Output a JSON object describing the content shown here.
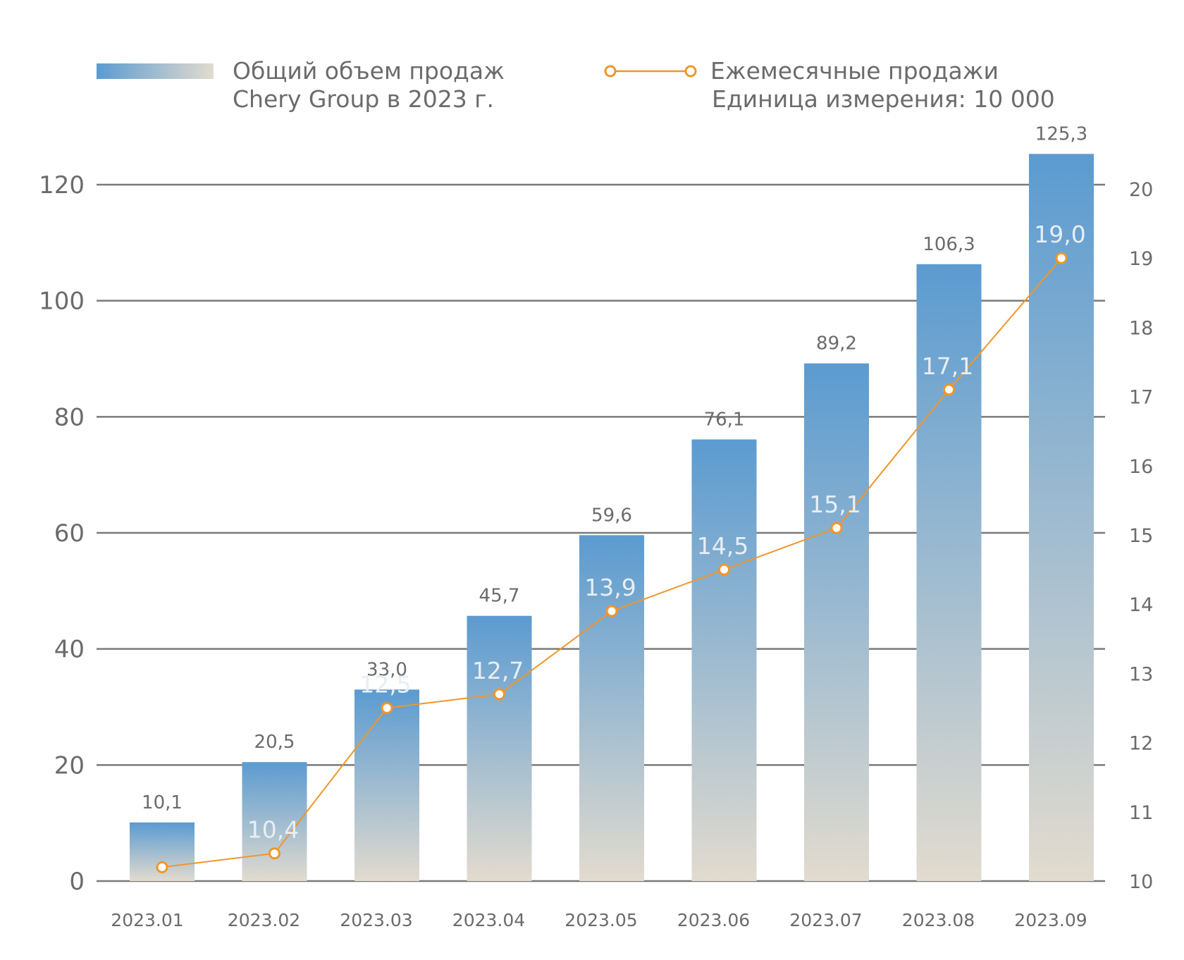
{
  "legend": {
    "bar_label_line1": "Общий объем продаж",
    "bar_label_line2": "Chery Group в 2023 г.",
    "line_label": "Ежемесячные продажи",
    "unit_label": "Единица измерения: 10 000"
  },
  "colors": {
    "bar_top": "#5b9bd0",
    "bar_bottom": "#e2dbcf",
    "line": "#f0962a",
    "grid": "#7a7a7a",
    "text": "#6b6b6b",
    "monthly_label": "#e8eef6"
  },
  "chart_data": {
    "type": "bar",
    "categories": [
      "2023.01",
      "2023.02",
      "2023.03",
      "2023.04",
      "2023.05",
      "2023.06",
      "2023.07",
      "2023.08",
      "2023.09"
    ],
    "series": [
      {
        "type": "bar",
        "axis": "left",
        "values": [
          10.1,
          20.5,
          33.0,
          45.7,
          59.6,
          76.1,
          89.2,
          106.3,
          125.3
        ],
        "labels": [
          "10,1",
          "20,5",
          "33,0",
          "45,7",
          "59,6",
          "76,1",
          "89,2",
          "106,3",
          "125,3"
        ]
      },
      {
        "type": "line",
        "axis": "right",
        "values": [
          10.2,
          10.4,
          12.5,
          12.7,
          13.9,
          14.5,
          15.1,
          17.1,
          19.0
        ],
        "labels": [
          "",
          "10,4",
          "12,5",
          "12,7",
          "13,9",
          "14,5",
          "15,1",
          "17,1",
          "19,0"
        ]
      }
    ],
    "y_left": {
      "min": 0,
      "max": 120,
      "ticks": [
        "0",
        "20",
        "40",
        "60",
        "80",
        "100",
        "120"
      ]
    },
    "y_right": {
      "min": 10,
      "max": 20,
      "ticks": [
        "10",
        "11",
        "12",
        "13",
        "14",
        "15",
        "16",
        "17",
        "18",
        "19",
        "20"
      ]
    },
    "grid": true,
    "legend_position": "top"
  }
}
